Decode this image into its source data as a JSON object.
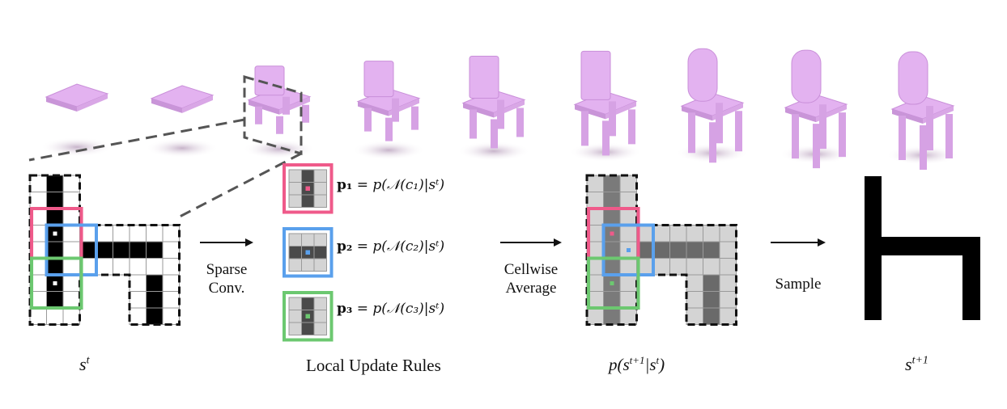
{
  "colors": {
    "chair": "#e3b2f0",
    "chair_shadow": "#d8c2da",
    "pink": "#ef5a8a",
    "blue": "#5aa0ec",
    "green": "#6cc870",
    "grid_line": "#9a9a9a",
    "dark_cell": "#4a4a4a",
    "mid_cell": "#8a8a8a",
    "light_cell": "#d4d4d4"
  },
  "labels": {
    "state_t": "s^t",
    "state_t1": "s^{t+1}",
    "local_update_rules": "Local Update Rules",
    "prob_label": "p(s^{t+1}|s^t)",
    "sparse_conv": [
      "Sparse",
      "Conv."
    ],
    "cellwise_average": [
      "Cellwise",
      "Average"
    ],
    "sample": "Sample"
  },
  "equations": [
    {
      "lhs": "p₁",
      "rhs": "= p(𝒩(c₁)|sᵗ)",
      "color": "pink"
    },
    {
      "lhs": "p₂",
      "rhs": "= p(𝒩(c₂)|sᵗ)",
      "color": "blue"
    },
    {
      "lhs": "p₃",
      "rhs": "= p(𝒩(c₃)|sᵗ)",
      "color": "green"
    }
  ],
  "chair_sequence_steps": 10
}
